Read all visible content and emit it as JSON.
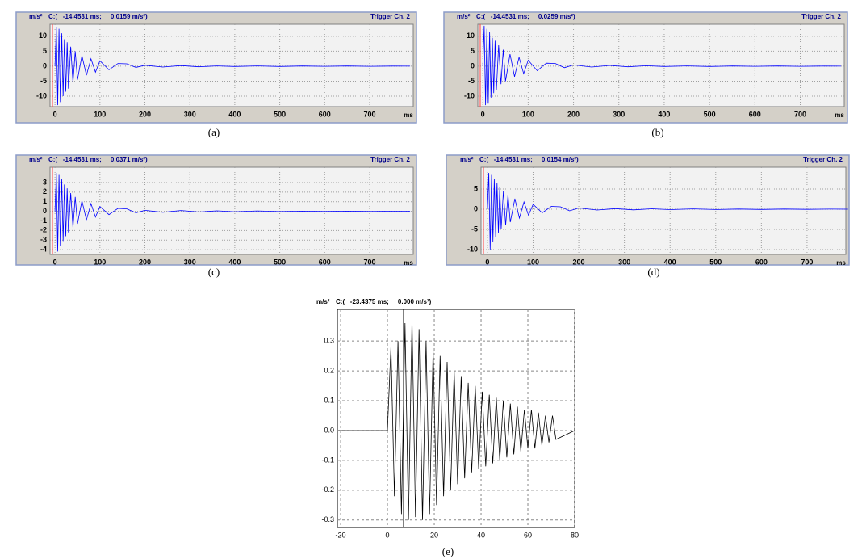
{
  "chart_data": [
    {
      "type": "line",
      "caption": "(a)",
      "y_unit": "m/s²",
      "cursor": "C:(   -14.4531 ms;     0.0159 m/s²)",
      "trigger": "Trigger Ch. 2",
      "x_unit": "ms",
      "color": "#0000ff",
      "grid": true,
      "xlim": [
        -11,
        797
      ],
      "xticks": [
        0,
        100,
        200,
        300,
        400,
        500,
        600,
        700
      ],
      "ylim": [
        -13.5,
        14
      ],
      "yticks": [
        10,
        5,
        0,
        -5,
        -10
      ],
      "x": [
        0,
        3,
        6,
        9,
        12,
        15,
        18,
        21,
        24,
        27,
        30,
        35,
        40,
        45,
        50,
        60,
        70,
        80,
        90,
        100,
        120,
        140,
        160,
        180,
        200,
        240,
        280,
        320,
        360,
        400,
        450,
        500,
        550,
        600,
        650,
        700,
        750,
        790
      ],
      "values": [
        0,
        13,
        -13,
        12.5,
        -12,
        11,
        -10,
        9,
        -8.5,
        8,
        -7.5,
        6.5,
        -5.5,
        5,
        -4.5,
        3.5,
        -3,
        2.5,
        -2,
        1.8,
        -1.2,
        0.9,
        0.8,
        -0.4,
        0.3,
        -0.3,
        0.2,
        -0.2,
        0.1,
        -0.1,
        0.1,
        -0.1,
        0.05,
        -0.05,
        0.05,
        -0.05,
        0.03,
        0
      ]
    },
    {
      "type": "line",
      "caption": "(b)",
      "y_unit": "m/s²",
      "cursor": "C:(   -14.4531 ms;     0.0259 m/s²)",
      "trigger": "Trigger Ch. 2",
      "x_unit": "ms",
      "color": "#0000ff",
      "grid": true,
      "xlim": [
        -11,
        797
      ],
      "xticks": [
        0,
        100,
        200,
        300,
        400,
        500,
        600,
        700
      ],
      "ylim": [
        -13.5,
        14
      ],
      "yticks": [
        10,
        5,
        0,
        -5,
        -10
      ],
      "x": [
        0,
        3,
        6,
        9,
        12,
        15,
        18,
        21,
        24,
        27,
        30,
        35,
        40,
        45,
        50,
        60,
        70,
        80,
        90,
        100,
        120,
        140,
        160,
        180,
        200,
        240,
        280,
        320,
        360,
        400,
        450,
        500,
        550,
        600,
        650,
        700,
        750,
        790
      ],
      "values": [
        0,
        13.5,
        -13,
        12.5,
        -12.5,
        11.5,
        -10.5,
        9.5,
        -9,
        8.5,
        -8,
        7,
        -6,
        5.5,
        -5,
        4,
        -3.5,
        3,
        -2.5,
        2,
        -1.5,
        1,
        0.9,
        -0.5,
        0.4,
        -0.3,
        0.25,
        -0.2,
        0.15,
        -0.1,
        0.1,
        -0.1,
        0.05,
        -0.05,
        0.05,
        -0.05,
        0.03,
        0
      ]
    },
    {
      "type": "line",
      "caption": "(c)",
      "y_unit": "m/s²",
      "cursor": "C:(   -14.4531 ms;     0.0371 m/s²)",
      "trigger": "Trigger Ch. 2",
      "x_unit": "ms",
      "color": "#0000ff",
      "grid": true,
      "xlim": [
        -11,
        797
      ],
      "xticks": [
        0,
        100,
        200,
        300,
        400,
        500,
        600,
        700
      ],
      "ylim": [
        -4.5,
        4.6
      ],
      "yticks": [
        3,
        2,
        1,
        0,
        -1,
        -2,
        -3,
        -4
      ],
      "x": [
        0,
        3,
        6,
        9,
        12,
        15,
        18,
        21,
        24,
        27,
        30,
        35,
        40,
        45,
        50,
        60,
        70,
        80,
        90,
        100,
        120,
        140,
        160,
        180,
        200,
        240,
        280,
        320,
        360,
        400,
        450,
        500,
        550,
        600,
        650,
        700,
        750,
        790
      ],
      "values": [
        0,
        4,
        -4.2,
        3.8,
        -3.6,
        3.4,
        -3.1,
        2.8,
        -2.6,
        2.4,
        -2.2,
        1.9,
        -1.7,
        1.5,
        -1.3,
        1.1,
        -0.9,
        0.8,
        -0.6,
        0.5,
        -0.35,
        0.3,
        0.25,
        -0.15,
        0.1,
        -0.1,
        0.08,
        -0.07,
        0.05,
        -0.04,
        0.04,
        -0.03,
        0.02,
        -0.02,
        0.02,
        -0.02,
        0.01,
        0
      ]
    },
    {
      "type": "line",
      "caption": "(d)",
      "y_unit": "m/s²",
      "cursor": "C:(   -14.4531 ms;     0.0154 m/s²)",
      "trigger": "Trigger Ch. 2",
      "x_unit": "ms",
      "color": "#0000ff",
      "grid": true,
      "xlim": [
        -14,
        785
      ],
      "xticks": [
        0,
        100,
        200,
        300,
        400,
        500,
        600,
        700
      ],
      "ylim": [
        -11.2,
        10.4
      ],
      "yticks": [
        5,
        0,
        -5,
        -10
      ],
      "x": [
        0,
        3,
        6,
        9,
        12,
        15,
        18,
        21,
        24,
        27,
        30,
        35,
        40,
        45,
        50,
        60,
        70,
        80,
        90,
        100,
        120,
        140,
        160,
        180,
        200,
        240,
        280,
        320,
        360,
        400,
        450,
        500,
        550,
        600,
        650,
        700,
        750,
        790
      ],
      "values": [
        0,
        9,
        -10,
        8.5,
        -8,
        7.5,
        -7,
        6.5,
        -6,
        5.5,
        -5,
        4.5,
        -4,
        3.6,
        -3.2,
        2.6,
        -2.2,
        1.8,
        -1.5,
        1.2,
        -0.9,
        0.7,
        0.6,
        -0.4,
        0.3,
        -0.2,
        0.15,
        -0.15,
        0.1,
        -0.1,
        0.08,
        -0.08,
        0.05,
        -0.05,
        0.04,
        -0.04,
        0.03,
        0
      ]
    },
    {
      "type": "line",
      "caption": "(e)",
      "y_unit": "m/s²",
      "cursor": "C:(   -23.4375 ms;     0.000 m/s²)",
      "color": "#000000",
      "grid": true,
      "xlim": [
        -21.4,
        80
      ],
      "xticks": [
        -20,
        0,
        20,
        40,
        60,
        80
      ],
      "ylim": [
        -0.325,
        0.406
      ],
      "yticks": [
        0.3,
        0.2,
        0.1,
        0.0,
        -0.1,
        -0.2,
        -0.3
      ],
      "x": [
        -21,
        0,
        1.5,
        3,
        4.5,
        6,
        7.5,
        9,
        10.5,
        12,
        13.5,
        15,
        16.5,
        18,
        19.5,
        21,
        22.5,
        24,
        25.5,
        27,
        28.5,
        30,
        31.5,
        33,
        34.5,
        36,
        37.5,
        39,
        40.5,
        42,
        43.5,
        45,
        46.5,
        48,
        49.5,
        51,
        52.5,
        54,
        55.5,
        57,
        58.5,
        60,
        61.5,
        63,
        64.5,
        66,
        67.5,
        69,
        70.5,
        72,
        80
      ],
      "values": [
        0,
        0,
        0.28,
        -0.22,
        0.3,
        -0.28,
        0.36,
        -0.3,
        0.37,
        -0.29,
        0.34,
        -0.3,
        0.3,
        -0.28,
        0.27,
        -0.25,
        0.25,
        -0.22,
        0.23,
        -0.2,
        0.2,
        -0.18,
        0.18,
        -0.16,
        0.16,
        -0.14,
        0.15,
        -0.13,
        0.13,
        -0.12,
        0.12,
        -0.11,
        0.11,
        -0.1,
        0.1,
        -0.09,
        0.09,
        -0.08,
        0.08,
        -0.07,
        0.07,
        -0.06,
        0.07,
        -0.06,
        0.06,
        -0.05,
        0.05,
        -0.04,
        0.05,
        -0.03,
        0
      ]
    }
  ]
}
